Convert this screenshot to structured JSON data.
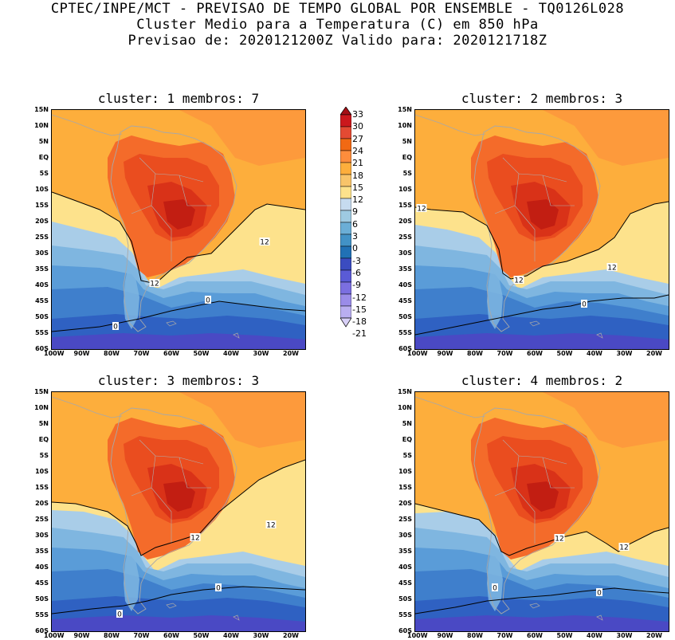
{
  "header": {
    "line1": "CPTEC/INPE/MCT - PREVISAO DE TEMPO GLOBAL POR ENSEMBLE - TQ0126L028",
    "line2": "Cluster Medio para a Temperatura (C) em 850 hPa",
    "line3": "Previsao de: 2020121200Z   Valido para: 2020121718Z"
  },
  "axes": {
    "lat_labels": [
      "15N",
      "10N",
      "5N",
      "EQ",
      "5S",
      "10S",
      "15S",
      "20S",
      "25S",
      "30S",
      "35S",
      "40S",
      "45S",
      "50S",
      "55S",
      "60S"
    ],
    "lon_labels": [
      "100W",
      "90W",
      "80W",
      "70W",
      "60W",
      "50W",
      "40W",
      "30W",
      "20W"
    ]
  },
  "colorbar": {
    "labels": [
      "33",
      "30",
      "27",
      "24",
      "21",
      "18",
      "15",
      "12",
      "9",
      "6",
      "3",
      "0",
      "-3",
      "-6",
      "-9",
      "-12",
      "-15",
      "-18",
      "-21"
    ],
    "colors": [
      "#a50f15",
      "#cb181d",
      "#e34a33",
      "#f16913",
      "#fd8d3c",
      "#fdae3c",
      "#f8c46a",
      "#fde28c",
      "#c6dbef",
      "#9ecae1",
      "#6baed6",
      "#4292c6",
      "#2171b5",
      "#3b4cc0",
      "#5a5bd6",
      "#7b6fe0",
      "#9a8ce8",
      "#b9aef0",
      "#d8d0f7"
    ]
  },
  "panels": [
    {
      "title": "cluster: 1   membros: 7",
      "contour_labels": [
        "12",
        "12",
        "0",
        "0"
      ]
    },
    {
      "title": "cluster: 2   membros: 3",
      "contour_labels": [
        "12",
        "12",
        "12",
        "0"
      ]
    },
    {
      "title": "cluster: 3   membros: 3",
      "contour_labels": [
        "12",
        "12",
        "0",
        "0"
      ]
    },
    {
      "title": "cluster: 4   membros: 2",
      "contour_labels": [
        "12",
        "12",
        "0",
        "0"
      ]
    }
  ]
}
